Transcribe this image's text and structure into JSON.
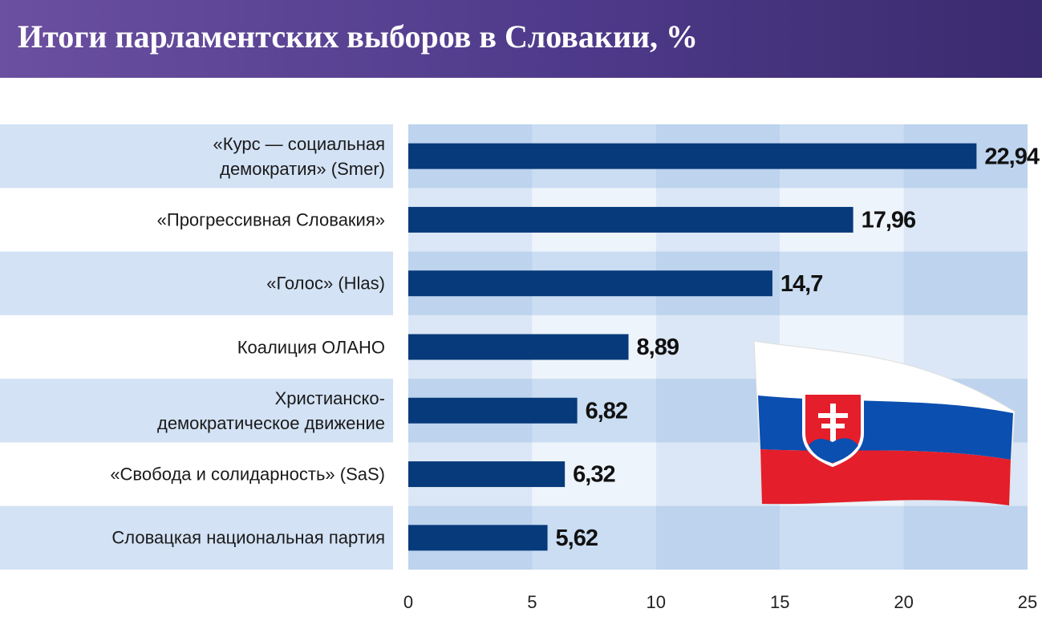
{
  "chart_data": {
    "type": "bar",
    "orientation": "horizontal",
    "title": "Итоги парламентских выборов в Словакии, %",
    "categories": [
      "«Курс — социальная\nдемократия» (Smer)",
      "«Прогрессивная Словакия»",
      "«Голос» (Hlas)",
      "Коалиция ОЛАНО",
      "Христианско-\nдемократическое движение",
      "«Свобода и солидарность» (SaS)",
      "Словацкая национальная партия"
    ],
    "values": [
      22.94,
      17.96,
      14.7,
      8.89,
      6.82,
      6.32,
      5.62
    ],
    "value_labels": [
      "22,94",
      "17,96",
      "14,7",
      "8,89",
      "6,82",
      "6,32",
      "5,62"
    ],
    "color": "#073a7a",
    "xlim": [
      0,
      25
    ],
    "xticks": [
      0,
      5,
      10,
      15,
      20,
      25
    ]
  }
}
